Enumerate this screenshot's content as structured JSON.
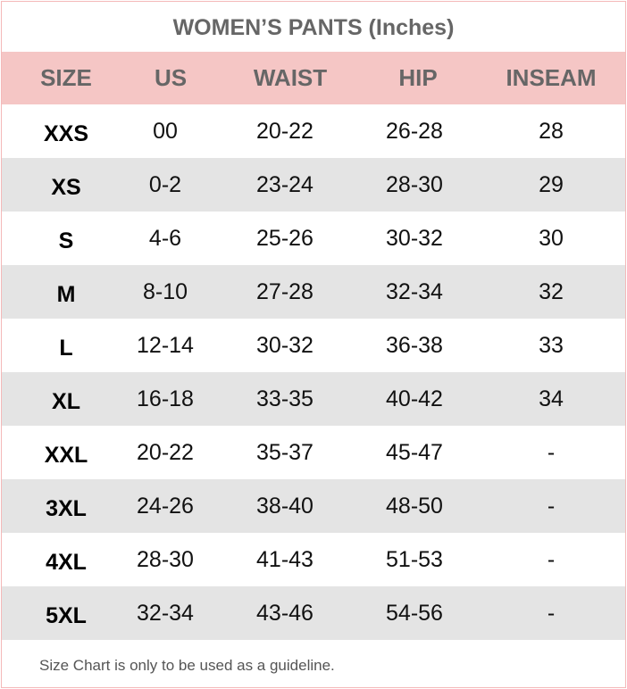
{
  "title": "WOMEN’S PANTS (Inches)",
  "colors": {
    "header_bg": "#f5c6c5",
    "alt_row_bg": "#e4e4e4",
    "border": "#f4b9b9"
  },
  "columns": [
    "SIZE",
    "US",
    "WAIST",
    "HIP",
    "INSEAM"
  ],
  "rows": [
    [
      "XXS",
      "00",
      "20-22",
      "26-28",
      "28"
    ],
    [
      "XS",
      "0-2",
      "23-24",
      "28-30",
      "29"
    ],
    [
      "S",
      "4-6",
      "25-26",
      "30-32",
      "30"
    ],
    [
      "M",
      "8-10",
      "27-28",
      "32-34",
      "32"
    ],
    [
      "L",
      "12-14",
      "30-32",
      "36-38",
      "33"
    ],
    [
      "XL",
      "16-18",
      "33-35",
      "40-42",
      "34"
    ],
    [
      "XXL",
      "20-22",
      "35-37",
      "45-47",
      "-"
    ],
    [
      "3XL",
      "24-26",
      "38-40",
      "48-50",
      "-"
    ],
    [
      "4XL",
      "28-30",
      "41-43",
      "51-53",
      "-"
    ],
    [
      "5XL",
      "32-34",
      "43-46",
      "54-56",
      "-"
    ]
  ],
  "footnote": "Size Chart is only to be used as a guideline."
}
